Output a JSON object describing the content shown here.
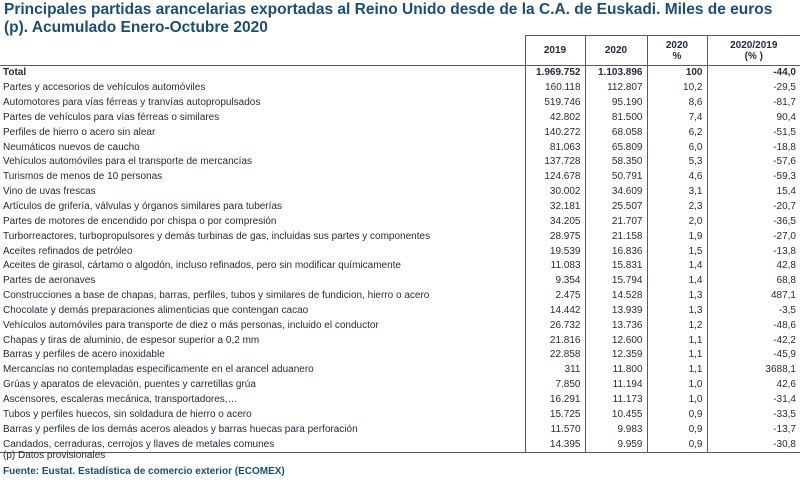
{
  "title": "Principales partidas arancelarias exportadas al Reino Unido desde de la C.A. de Euskadi. Miles de euros (p). Acumulado Enero-Octubre 2020",
  "headers": {
    "c1": "2019",
    "c2": "2020",
    "c3_line1": "2020",
    "c3_line2": "%",
    "c4_line1": "2020/2019",
    "c4_line2": "(% )"
  },
  "total": {
    "name": "Total",
    "v2019": "1.969.752",
    "v2020": "1.103.896",
    "pct": "100",
    "var": "-44,0"
  },
  "rows": [
    {
      "name": "Partes y accesorios de vehículos automóviles",
      "v2019": "160.118",
      "v2020": "112.807",
      "pct": "10,2",
      "var": "-29,5"
    },
    {
      "name": "Automotores para vías férreas y tranvías autopropulsados",
      "v2019": "519.746",
      "v2020": "95.190",
      "pct": "8,6",
      "var": "-81,7"
    },
    {
      "name": "Partes de vehículos para vías férreas o similares",
      "v2019": "42.802",
      "v2020": "81.500",
      "pct": "7,4",
      "var": "90,4"
    },
    {
      "name": "Perfiles de hierro o acero sin alear",
      "v2019": "140.272",
      "v2020": "68.058",
      "pct": "6,2",
      "var": "-51,5"
    },
    {
      "name": "Neumáticos nuevos de caucho",
      "v2019": "81.063",
      "v2020": "65.809",
      "pct": "6,0",
      "var": "-18,8"
    },
    {
      "name": "Vehículos automóviles para el transporte de mercancías",
      "v2019": "137.728",
      "v2020": "58.350",
      "pct": "5,3",
      "var": "-57,6"
    },
    {
      "name": "Turismos de menos de  10 personas",
      "v2019": "124.678",
      "v2020": "50.791",
      "pct": "4,6",
      "var": "-59,3"
    },
    {
      "name": "Vino de uvas frescas",
      "v2019": "30.002",
      "v2020": "34.609",
      "pct": "3,1",
      "var": "15,4"
    },
    {
      "name": "Artículos de grifería, válvulas y órganos similares para tuberías",
      "v2019": "32.181",
      "v2020": "25.507",
      "pct": "2,3",
      "var": "-20,7"
    },
    {
      "name": "Partes de motores de encendido por chispa o por compresión",
      "v2019": "34.205",
      "v2020": "21.707",
      "pct": "2,0",
      "var": "-36,5"
    },
    {
      "name": "Turborreactores, turbopropulsores y demás turbinas de gas, incluidas sus partes y componentes",
      "v2019": "28.975",
      "v2020": "21.158",
      "pct": "1,9",
      "var": "-27,0"
    },
    {
      "name": "Aceites refinados de petróleo",
      "v2019": "19.539",
      "v2020": "16.836",
      "pct": "1,5",
      "var": "-13,8"
    },
    {
      "name": "Aceites de girasol, cártamo o algodón, incluso refinados, pero sin modificar químicamente",
      "v2019": "11.083",
      "v2020": "15.831",
      "pct": "1,4",
      "var": "42,8"
    },
    {
      "name": "Partes de aeronaves",
      "v2019": "9.354",
      "v2020": "15.794",
      "pct": "1,4",
      "var": "68,8"
    },
    {
      "name": "Construcciones a base de chapas, barras, perfiles, tubos y similares de fundicion, hierro o acero",
      "v2019": "2.475",
      "v2020": "14.528",
      "pct": "1,3",
      "var": "487,1"
    },
    {
      "name": "Chocolate y demás preparaciones alimenticias que contengan cacao",
      "v2019": "14.442",
      "v2020": "13.939",
      "pct": "1,3",
      "var": "-3,5"
    },
    {
      "name": "Vehículos automóviles para transporte de diez o más personas, incluido el conductor",
      "v2019": "26.732",
      "v2020": "13.736",
      "pct": "1,2",
      "var": "-48,6"
    },
    {
      "name": "Chapas y tiras de aluminio, de espesor superior a 0,2 mm",
      "v2019": "21.816",
      "v2020": "12.600",
      "pct": "1,1",
      "var": "-42,2"
    },
    {
      "name": "Barras y perfiles de acero inoxidable",
      "v2019": "22.858",
      "v2020": "12.359",
      "pct": "1,1",
      "var": "-45,9"
    },
    {
      "name": "Mercancías no contempladas especificamente en el arancel aduanero",
      "v2019": "311",
      "v2020": "11.800",
      "pct": "1,1",
      "var": "3688,1"
    },
    {
      "name": "Grúas y aparatos de elevación, puentes y carretillas grúa",
      "v2019": "7.850",
      "v2020": "11.194",
      "pct": "1,0",
      "var": "42,6"
    },
    {
      "name": "Ascensores, escaleras mecánica, transportadores,…",
      "v2019": "16.291",
      "v2020": "11.173",
      "pct": "1,0",
      "var": "-31,4"
    },
    {
      "name": "Tubos y perfiles huecos, sin soldadura de hierro o acero",
      "v2019": "15.725",
      "v2020": "10.455",
      "pct": "0,9",
      "var": "-33,5"
    },
    {
      "name": "Barras y perfiles de los demás aceros aleados y barras huecas para perforación",
      "v2019": "11.570",
      "v2020": "9.983",
      "pct": "0,9",
      "var": "-13,7"
    },
    {
      "name": "Candados, cerraduras, cerrojos y llaves de metales comunes",
      "v2019": "14.395",
      "v2020": "9.959",
      "pct": "0,9",
      "var": "-30,8"
    }
  ],
  "note": "(p) Datos provisionales",
  "source": "Fuente: Eustat. Estadística de comercio exterior (ECOMEX)"
}
